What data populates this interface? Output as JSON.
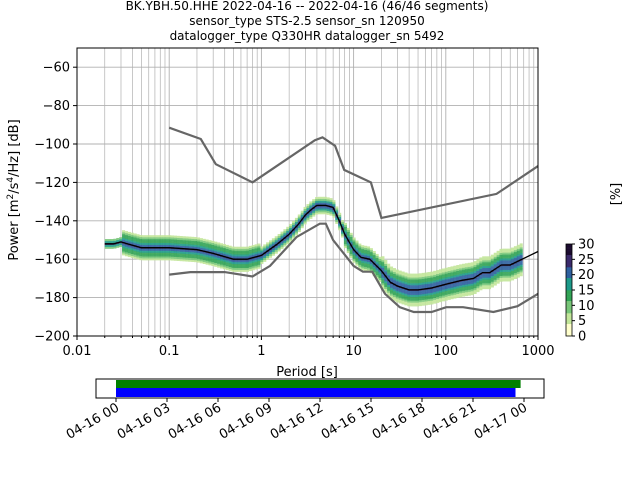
{
  "chart_data": {
    "type": "heatmap",
    "title_lines": [
      "BK.YBH.50.HHE   2022-04-16 -- 2022-04-16  (46/46 segments)",
      "sensor_type STS-2.5 sensor_sn 120950",
      "datalogger_type Q330HR datalogger_sn 5492"
    ],
    "xlabel": "Period [s]",
    "ylabel": "Power [m²/s⁴/Hz] [dB]",
    "x_scale": "log",
    "xlim": [
      0.01,
      1000
    ],
    "ylim": [
      -200,
      -50
    ],
    "x_ticks": [
      0.01,
      0.1,
      1,
      10,
      100,
      1000
    ],
    "x_tick_labels": [
      "0.01",
      "0.1",
      "1",
      "10",
      "100",
      "1000"
    ],
    "y_ticks": [
      -200,
      -180,
      -160,
      -140,
      -120,
      -100,
      -80,
      -60
    ],
    "y_tick_labels": [
      "−200",
      "−180",
      "−160",
      "−140",
      "−120",
      "−100",
      "−80",
      "−60"
    ],
    "grid": true,
    "noise_models": {
      "high": {
        "x": [
          0.1,
          0.22,
          0.32,
          0.8,
          3.8,
          4.6,
          6.3,
          7.9,
          15.4,
          20,
          354.8,
          1000
        ],
        "y": [
          -91.5,
          -97.4,
          -110.5,
          -120,
          -98,
          -96.5,
          -101,
          -113.5,
          -120,
          -138.5,
          -126,
          -111.5
        ]
      },
      "low": {
        "x": [
          0.1,
          0.17,
          0.4,
          0.8,
          1.24,
          2.4,
          4.3,
          5.0,
          6.0,
          10.0,
          12.6,
          15.9,
          21.9,
          31.6,
          45,
          70,
          101,
          154,
          328,
          600,
          1000
        ],
        "y": [
          -168,
          -166.7,
          -166.7,
          -169,
          -163.5,
          -148.5,
          -141.5,
          -141.5,
          -150,
          -163.5,
          -166.5,
          -166.5,
          -178,
          -185,
          -187.5,
          -187.5,
          -185,
          -185,
          -187.5,
          -184.5,
          -178
        ]
      }
    },
    "mode_line": {
      "x": [
        0.02,
        0.025,
        0.03,
        0.035,
        0.05,
        0.1,
        0.2,
        0.3,
        0.5,
        0.7,
        1,
        1.5,
        2,
        2.5,
        3,
        3.5,
        4,
        5,
        6,
        7,
        8,
        10,
        12,
        15,
        20,
        25,
        30,
        40,
        50,
        70,
        100,
        150,
        200,
        250,
        300,
        400,
        500,
        1000
      ],
      "y": [
        -152,
        -152,
        -151,
        -152,
        -154,
        -154,
        -155,
        -157,
        -160,
        -160,
        -158,
        -152,
        -147,
        -142,
        -137,
        -134,
        -132,
        -132,
        -133,
        -140,
        -147,
        -155,
        -159,
        -160,
        -166,
        -172,
        -174,
        -176,
        -176,
        -175,
        -173,
        -171,
        -170,
        -167,
        -167,
        -163,
        -163,
        -156
      ]
    },
    "colorbar": {
      "label": "[%]",
      "min": 0,
      "max": 30,
      "ticks": [
        0,
        5,
        10,
        15,
        20,
        25,
        30
      ],
      "colors": [
        "#ffffcc",
        "#c2e699",
        "#78c679",
        "#31a354",
        "#1d9a8a",
        "#2c5f9e",
        "#3b2a6b",
        "#1a0a2e"
      ]
    },
    "time_axis": {
      "tick_labels": [
        "04-16 00",
        "04-16 03",
        "04-16 06",
        "04-16 09",
        "04-16 12",
        "04-16 15",
        "04-16 18",
        "04-16 21",
        "04-17 00"
      ],
      "data_coverage_color": "#008000",
      "psd_coverage_color": "#0000ff",
      "data_coverage_hours": [
        0,
        23.8
      ],
      "psd_coverage_hours": [
        0,
        23.5
      ]
    }
  }
}
